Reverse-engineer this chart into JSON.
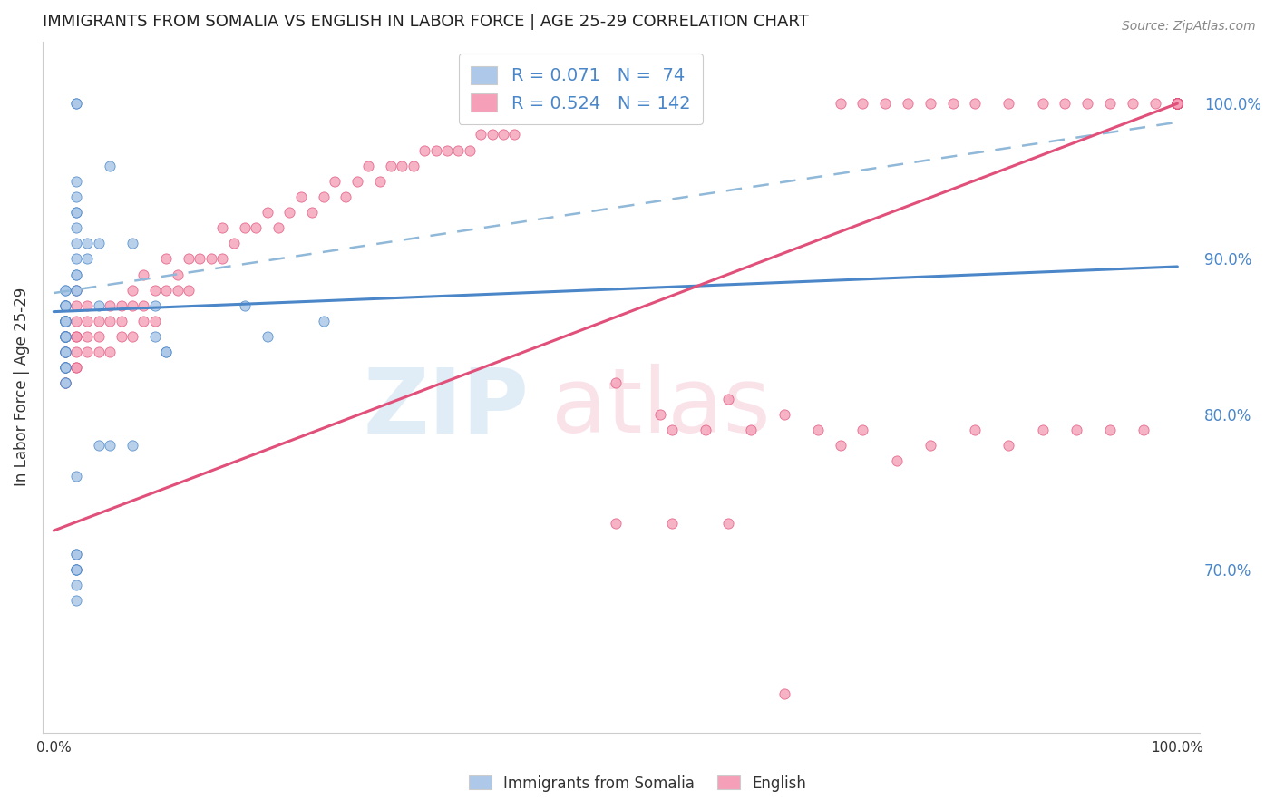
{
  "title": "IMMIGRANTS FROM SOMALIA VS ENGLISH IN LABOR FORCE | AGE 25-29 CORRELATION CHART",
  "source": "Source: ZipAtlas.com",
  "ylabel": "In Labor Force | Age 25-29",
  "ytick_labels": [
    "70.0%",
    "80.0%",
    "90.0%",
    "100.0%"
  ],
  "ytick_values": [
    0.7,
    0.8,
    0.9,
    1.0
  ],
  "xlim": [
    -0.01,
    1.02
  ],
  "ylim": [
    0.595,
    1.04
  ],
  "legend_r1": "R = 0.071",
  "legend_n1": "N =  74",
  "legend_r2": "R = 0.524",
  "legend_n2": "N = 142",
  "color_blue": "#adc8e8",
  "color_pink": "#f5a0b8",
  "color_blue_line": "#4a86c8",
  "color_pink_line": "#e0507a",
  "color_dashed": "#90b8d8",
  "blue_line_x0": 0.0,
  "blue_line_y0": 0.866,
  "blue_line_x1": 1.0,
  "blue_line_y1": 0.895,
  "pink_line_x0": 0.0,
  "pink_line_y0": 0.725,
  "pink_line_x1": 1.0,
  "pink_line_y1": 1.0,
  "dash_line_x0": 0.0,
  "dash_line_y0": 0.878,
  "dash_line_x1": 1.0,
  "dash_line_y1": 0.988,
  "blue_x": [
    0.01,
    0.01,
    0.01,
    0.01,
    0.01,
    0.01,
    0.01,
    0.01,
    0.01,
    0.01,
    0.01,
    0.01,
    0.01,
    0.01,
    0.01,
    0.01,
    0.01,
    0.01,
    0.01,
    0.01,
    0.01,
    0.01,
    0.01,
    0.01,
    0.01,
    0.01,
    0.01,
    0.01,
    0.01,
    0.01,
    0.01,
    0.01,
    0.01,
    0.01,
    0.01,
    0.01,
    0.02,
    0.02,
    0.02,
    0.02,
    0.02,
    0.02,
    0.02,
    0.03,
    0.03,
    0.04,
    0.04,
    0.05,
    0.07,
    0.07,
    0.09,
    0.09,
    0.1,
    0.1,
    0.17,
    0.19,
    0.24,
    0.02,
    0.02,
    0.02,
    0.02,
    0.02,
    0.02,
    0.02,
    0.02,
    0.02,
    0.02,
    0.02,
    0.04,
    0.05,
    0.02,
    0.02,
    0.02,
    0.02
  ],
  "blue_y": [
    0.88,
    0.88,
    0.87,
    0.87,
    0.87,
    0.87,
    0.87,
    0.86,
    0.86,
    0.86,
    0.86,
    0.86,
    0.86,
    0.86,
    0.86,
    0.86,
    0.85,
    0.85,
    0.85,
    0.85,
    0.85,
    0.85,
    0.85,
    0.85,
    0.85,
    0.84,
    0.84,
    0.84,
    0.84,
    0.83,
    0.83,
    0.83,
    0.83,
    0.83,
    0.82,
    0.82,
    0.92,
    0.91,
    0.9,
    0.89,
    0.89,
    0.88,
    0.88,
    0.91,
    0.9,
    0.91,
    0.87,
    0.96,
    0.91,
    0.78,
    0.87,
    0.85,
    0.84,
    0.84,
    0.87,
    0.85,
    0.86,
    1.0,
    1.0,
    0.95,
    0.94,
    0.93,
    0.93,
    0.76,
    0.7,
    0.7,
    0.69,
    0.68,
    0.78,
    0.78,
    0.71,
    0.7,
    0.71,
    0.7
  ],
  "pink_x": [
    0.01,
    0.01,
    0.01,
    0.01,
    0.01,
    0.01,
    0.01,
    0.01,
    0.01,
    0.01,
    0.02,
    0.02,
    0.02,
    0.02,
    0.02,
    0.02,
    0.02,
    0.02,
    0.03,
    0.03,
    0.03,
    0.03,
    0.04,
    0.04,
    0.04,
    0.05,
    0.05,
    0.05,
    0.06,
    0.06,
    0.06,
    0.07,
    0.07,
    0.07,
    0.08,
    0.08,
    0.08,
    0.09,
    0.09,
    0.1,
    0.1,
    0.11,
    0.11,
    0.12,
    0.12,
    0.13,
    0.14,
    0.15,
    0.15,
    0.16,
    0.17,
    0.18,
    0.19,
    0.2,
    0.21,
    0.22,
    0.23,
    0.24,
    0.25,
    0.26,
    0.27,
    0.28,
    0.29,
    0.3,
    0.31,
    0.32,
    0.33,
    0.34,
    0.35,
    0.36,
    0.37,
    0.38,
    0.39,
    0.4,
    0.41,
    0.42,
    0.44,
    0.46,
    0.48,
    0.5,
    0.5,
    0.52,
    0.54,
    0.55,
    0.58,
    0.6,
    0.62,
    0.65,
    0.68,
    0.7,
    0.72,
    0.75,
    0.78,
    0.82,
    0.85,
    0.88,
    0.91,
    0.94,
    0.97,
    1.0,
    0.7,
    0.72,
    0.74,
    0.76,
    0.78,
    0.8,
    0.82,
    0.85,
    0.88,
    0.9,
    0.92,
    0.94,
    0.96,
    0.98,
    1.0,
    1.0,
    1.0,
    1.0,
    1.0,
    1.0,
    1.0,
    1.0,
    1.0,
    1.0,
    1.0,
    1.0,
    1.0,
    1.0,
    1.0,
    1.0,
    1.0,
    1.0,
    1.0,
    1.0,
    1.0,
    1.0,
    1.0,
    1.0,
    0.5,
    0.55,
    0.6,
    0.65
  ],
  "pink_y": [
    0.87,
    0.86,
    0.85,
    0.85,
    0.84,
    0.84,
    0.83,
    0.83,
    0.82,
    0.82,
    0.88,
    0.87,
    0.86,
    0.85,
    0.85,
    0.84,
    0.83,
    0.83,
    0.87,
    0.86,
    0.85,
    0.84,
    0.86,
    0.85,
    0.84,
    0.87,
    0.86,
    0.84,
    0.87,
    0.86,
    0.85,
    0.88,
    0.87,
    0.85,
    0.89,
    0.87,
    0.86,
    0.88,
    0.86,
    0.9,
    0.88,
    0.89,
    0.88,
    0.9,
    0.88,
    0.9,
    0.9,
    0.92,
    0.9,
    0.91,
    0.92,
    0.92,
    0.93,
    0.92,
    0.93,
    0.94,
    0.93,
    0.94,
    0.95,
    0.94,
    0.95,
    0.96,
    0.95,
    0.96,
    0.96,
    0.96,
    0.97,
    0.97,
    0.97,
    0.97,
    0.97,
    0.98,
    0.98,
    0.98,
    0.98,
    0.99,
    0.99,
    0.99,
    0.99,
    1.0,
    0.82,
    1.0,
    0.8,
    0.79,
    0.79,
    0.81,
    0.79,
    0.8,
    0.79,
    0.78,
    0.79,
    0.77,
    0.78,
    0.79,
    0.78,
    0.79,
    0.79,
    0.79,
    0.79,
    1.0,
    1.0,
    1.0,
    1.0,
    1.0,
    1.0,
    1.0,
    1.0,
    1.0,
    1.0,
    1.0,
    1.0,
    1.0,
    1.0,
    1.0,
    1.0,
    1.0,
    1.0,
    1.0,
    1.0,
    1.0,
    1.0,
    1.0,
    1.0,
    1.0,
    1.0,
    1.0,
    1.0,
    1.0,
    1.0,
    1.0,
    1.0,
    1.0,
    1.0,
    1.0,
    1.0,
    1.0,
    1.0,
    1.0,
    0.73,
    0.73,
    0.73,
    0.62
  ]
}
